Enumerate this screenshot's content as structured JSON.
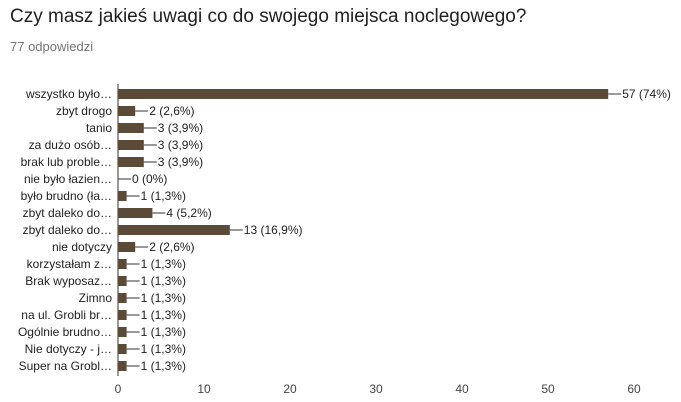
{
  "header": {
    "title": "Czy masz jakieś uwagi co do swojego miejsca noclegowego?",
    "responses": "77 odpowiedzi"
  },
  "colors": {
    "bar": "#5b4a37",
    "axis": "#333333"
  },
  "chart_data": {
    "type": "bar",
    "orientation": "horizontal",
    "title": "Czy masz jakieś uwagi co do swojego miejsca noclegowego?",
    "xlim": [
      0,
      60
    ],
    "xticks": [
      0,
      10,
      20,
      30,
      40,
      50,
      60
    ],
    "grid": false,
    "categories": [
      "wszystko było…",
      "zbyt drogo",
      "tanio",
      "za dużo osób…",
      "brak lub proble…",
      "nie było łazien…",
      "było brudno (ła…",
      "zbyt daleko do…",
      "zbyt daleko do…",
      "nie dotyczy",
      "korzystałam z…",
      "Brak wyposaz…",
      "Zimno",
      "na ul. Grobli br…",
      "Ogólnie brudno…",
      "Nie dotyczy - j…",
      "Super na Grobl…"
    ],
    "values": [
      57,
      2,
      3,
      3,
      3,
      0,
      1,
      4,
      13,
      2,
      1,
      1,
      1,
      1,
      1,
      1,
      1
    ],
    "value_labels": [
      "57 (74%)",
      "2 (2,6%)",
      "3 (3,9%)",
      "3 (3,9%)",
      "3 (3,9%)",
      "0 (0%)",
      "1 (1,3%)",
      "4 (5,2%)",
      "13 (16,9%)",
      "2 (2,6%)",
      "1 (1,3%)",
      "1 (1,3%)",
      "1 (1,3%)",
      "1 (1,3%)",
      "1 (1,3%)",
      "1 (1,3%)",
      "1 (1,3%)"
    ]
  }
}
